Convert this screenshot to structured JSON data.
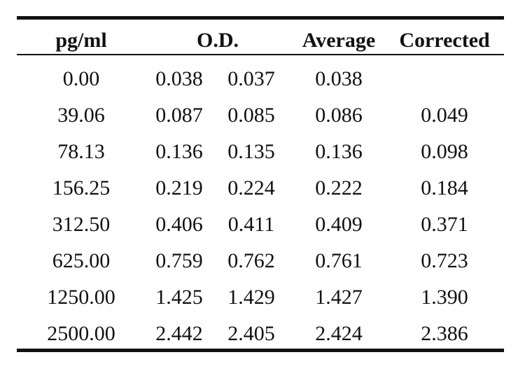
{
  "table": {
    "headers": {
      "conc": "pg/ml",
      "od": "O.D.",
      "average": "Average",
      "corrected": "Corrected"
    },
    "rows": [
      {
        "conc": "0.00",
        "od1": "0.038",
        "od2": "0.037",
        "average": "0.038",
        "corrected": ""
      },
      {
        "conc": "39.06",
        "od1": "0.087",
        "od2": "0.085",
        "average": "0.086",
        "corrected": "0.049"
      },
      {
        "conc": "78.13",
        "od1": "0.136",
        "od2": "0.135",
        "average": "0.136",
        "corrected": "0.098"
      },
      {
        "conc": "156.25",
        "od1": "0.219",
        "od2": "0.224",
        "average": "0.222",
        "corrected": "0.184"
      },
      {
        "conc": "312.50",
        "od1": "0.406",
        "od2": "0.411",
        "average": "0.409",
        "corrected": "0.371"
      },
      {
        "conc": "625.00",
        "od1": "0.759",
        "od2": "0.762",
        "average": "0.761",
        "corrected": "0.723"
      },
      {
        "conc": "1250.00",
        "od1": "1.425",
        "od2": "1.429",
        "average": "1.427",
        "corrected": "1.390"
      },
      {
        "conc": "2500.00",
        "od1": "2.442",
        "od2": "2.405",
        "average": "2.424",
        "corrected": "2.386"
      }
    ]
  }
}
